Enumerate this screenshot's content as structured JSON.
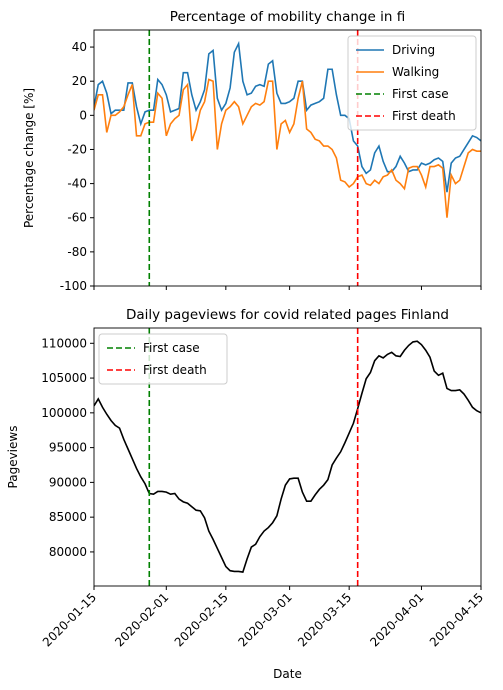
{
  "chart_data": [
    {
      "type": "line",
      "title": "Percentage of mobility change in fi",
      "ylabel": "Percentage change [%]",
      "x": [
        "2020-01-15",
        "2020-01-16",
        "2020-01-17",
        "2020-01-18",
        "2020-01-19",
        "2020-01-20",
        "2020-01-21",
        "2020-01-22",
        "2020-01-23",
        "2020-01-24",
        "2020-01-25",
        "2020-01-26",
        "2020-01-27",
        "2020-01-28",
        "2020-01-29",
        "2020-01-30",
        "2020-01-31",
        "2020-02-01",
        "2020-02-02",
        "2020-02-03",
        "2020-02-04",
        "2020-02-05",
        "2020-02-06",
        "2020-02-07",
        "2020-02-08",
        "2020-02-09",
        "2020-02-10",
        "2020-02-11",
        "2020-02-12",
        "2020-02-13",
        "2020-02-14",
        "2020-02-15",
        "2020-02-16",
        "2020-02-17",
        "2020-02-18",
        "2020-02-19",
        "2020-02-20",
        "2020-02-21",
        "2020-02-22",
        "2020-02-23",
        "2020-02-24",
        "2020-02-25",
        "2020-02-26",
        "2020-02-27",
        "2020-02-28",
        "2020-02-29",
        "2020-03-01",
        "2020-03-02",
        "2020-03-03",
        "2020-03-04",
        "2020-03-05",
        "2020-03-06",
        "2020-03-07",
        "2020-03-08",
        "2020-03-09",
        "2020-03-10",
        "2020-03-11",
        "2020-03-12",
        "2020-03-13",
        "2020-03-14",
        "2020-03-15",
        "2020-03-16",
        "2020-03-17",
        "2020-03-18",
        "2020-03-19",
        "2020-03-20",
        "2020-03-21",
        "2020-03-22",
        "2020-03-23",
        "2020-03-24",
        "2020-03-25",
        "2020-03-26",
        "2020-03-27",
        "2020-03-28",
        "2020-03-29",
        "2020-03-30",
        "2020-03-31",
        "2020-04-01",
        "2020-04-02",
        "2020-04-03",
        "2020-04-04",
        "2020-04-05",
        "2020-04-06",
        "2020-04-07",
        "2020-04-08",
        "2020-04-09",
        "2020-04-10",
        "2020-04-11",
        "2020-04-12",
        "2020-04-13",
        "2020-04-14",
        "2020-04-15"
      ],
      "series": [
        {
          "name": "Driving",
          "color": "#1f77b4",
          "values": [
            5,
            18,
            20,
            13,
            1,
            3,
            3,
            3,
            19,
            19,
            5,
            -5,
            2,
            3,
            3,
            21,
            18,
            12,
            2,
            3,
            4,
            25,
            25,
            12,
            3,
            8,
            15,
            36,
            38,
            10,
            3,
            7,
            16,
            37,
            42,
            20,
            12,
            13,
            17,
            18,
            17,
            30,
            32,
            13,
            7,
            7,
            8,
            10,
            20,
            20,
            3,
            6,
            7,
            8,
            10,
            27,
            27,
            12,
            0,
            0,
            -2,
            -15,
            -18,
            -30,
            -34,
            -32,
            -22,
            -18,
            -27,
            -33,
            -33,
            -30,
            -24,
            -28,
            -33,
            -32,
            -32,
            -28,
            -29,
            -28,
            -26,
            -25,
            -27,
            -45,
            -28,
            -25,
            -24,
            -20,
            -16,
            -12,
            -13,
            -15
          ]
        },
        {
          "name": "Walking",
          "color": "#ff7f0e",
          "values": [
            3,
            12,
            12,
            -10,
            0,
            0,
            2,
            5,
            12,
            18,
            -12,
            -12,
            -5,
            -4,
            -4,
            13,
            10,
            -12,
            -5,
            -2,
            0,
            15,
            18,
            -15,
            -8,
            3,
            8,
            21,
            20,
            -20,
            -5,
            3,
            5,
            8,
            5,
            -5,
            0,
            5,
            7,
            6,
            8,
            20,
            20,
            -20,
            -5,
            -3,
            -10,
            -5,
            10,
            20,
            -8,
            -10,
            -14,
            -15,
            -18,
            -18,
            -20,
            -25,
            -38,
            -39,
            -42,
            -40,
            -36,
            -35,
            -40,
            -41,
            -38,
            -40,
            -36,
            -35,
            -32,
            -38,
            -40,
            -43,
            -31,
            -30,
            -30,
            -35,
            -42,
            -30,
            -30,
            -29,
            -31,
            -60,
            -35,
            -40,
            -38,
            -30,
            -22,
            -20,
            -21,
            -21
          ]
        }
      ],
      "vlines": [
        {
          "name": "First case",
          "color": "#008000",
          "x": "2020-01-28"
        },
        {
          "name": "First death",
          "color": "#ff0000",
          "x": "2020-03-17"
        }
      ],
      "xlim": [
        "2020-01-15",
        "2020-04-15"
      ],
      "xticks": [
        "2020-01-15",
        "2020-02-01",
        "2020-02-15",
        "2020-03-01",
        "2020-03-15",
        "2020-04-01",
        "2020-04-15"
      ],
      "ylim": [
        -100,
        50
      ],
      "yticks": [
        -100,
        -80,
        -60,
        -40,
        -20,
        0,
        20,
        40
      ],
      "legend": "upper right"
    },
    {
      "type": "line",
      "title": "Daily pageviews for covid related pages Finland",
      "ylabel": "Pageviews",
      "xlabel": "Date",
      "x": [
        "2020-01-15",
        "2020-01-16",
        "2020-01-17",
        "2020-01-18",
        "2020-01-19",
        "2020-01-20",
        "2020-01-21",
        "2020-01-22",
        "2020-01-23",
        "2020-01-24",
        "2020-01-25",
        "2020-01-26",
        "2020-01-27",
        "2020-01-28",
        "2020-01-29",
        "2020-01-30",
        "2020-01-31",
        "2020-02-01",
        "2020-02-02",
        "2020-02-03",
        "2020-02-04",
        "2020-02-05",
        "2020-02-06",
        "2020-02-07",
        "2020-02-08",
        "2020-02-09",
        "2020-02-10",
        "2020-02-11",
        "2020-02-12",
        "2020-02-13",
        "2020-02-14",
        "2020-02-15",
        "2020-02-16",
        "2020-02-17",
        "2020-02-18",
        "2020-02-19",
        "2020-02-20",
        "2020-02-21",
        "2020-02-22",
        "2020-02-23",
        "2020-02-24",
        "2020-02-25",
        "2020-02-26",
        "2020-02-27",
        "2020-02-28",
        "2020-02-29",
        "2020-03-01",
        "2020-03-02",
        "2020-03-03",
        "2020-03-04",
        "2020-03-05",
        "2020-03-06",
        "2020-03-07",
        "2020-03-08",
        "2020-03-09",
        "2020-03-10",
        "2020-03-11",
        "2020-03-12",
        "2020-03-13",
        "2020-03-14",
        "2020-03-15",
        "2020-03-16",
        "2020-03-17",
        "2020-03-18",
        "2020-03-19",
        "2020-03-20",
        "2020-03-21",
        "2020-03-22",
        "2020-03-23",
        "2020-03-24",
        "2020-03-25",
        "2020-03-26",
        "2020-03-27",
        "2020-03-28",
        "2020-03-29",
        "2020-03-30",
        "2020-03-31",
        "2020-04-01",
        "2020-04-02",
        "2020-04-03",
        "2020-04-04",
        "2020-04-05",
        "2020-04-06",
        "2020-04-07",
        "2020-04-08",
        "2020-04-09",
        "2020-04-10",
        "2020-04-11",
        "2020-04-12",
        "2020-04-13",
        "2020-04-14",
        "2020-04-15"
      ],
      "series": [
        {
          "color": "#000000",
          "values": [
            101000,
            102000,
            100800,
            99800,
            98900,
            98200,
            97800,
            96200,
            94800,
            93400,
            92000,
            90800,
            89800,
            88400,
            88300,
            88700,
            88700,
            88600,
            88300,
            88400,
            87600,
            87200,
            87000,
            86500,
            86000,
            85900,
            84900,
            83000,
            81800,
            80500,
            79200,
            77900,
            77300,
            77200,
            77200,
            77100,
            79000,
            80700,
            81100,
            82200,
            83000,
            83500,
            84200,
            85200,
            87600,
            89600,
            90500,
            90600,
            90600,
            88600,
            87300,
            87300,
            88200,
            89000,
            89600,
            90400,
            92500,
            93500,
            94400,
            95700,
            97100,
            98500,
            100600,
            102800,
            104900,
            105800,
            107500,
            108200,
            107900,
            108400,
            108700,
            108200,
            108100,
            109000,
            109700,
            110200,
            110300,
            109800,
            109000,
            108000,
            106000,
            105400,
            105700,
            103500,
            103200,
            103200,
            103300,
            102700,
            101800,
            100800,
            100300,
            100000
          ]
        }
      ],
      "vlines": [
        {
          "name": "First case",
          "color": "#008000",
          "x": "2020-01-28"
        },
        {
          "name": "First death",
          "color": "#ff0000",
          "x": "2020-03-17"
        }
      ],
      "xlim": [
        "2020-01-15",
        "2020-04-15"
      ],
      "xticks": [
        "2020-01-15",
        "2020-02-01",
        "2020-02-15",
        "2020-03-01",
        "2020-03-15",
        "2020-04-01",
        "2020-04-15"
      ],
      "ylim": [
        75100,
        112200
      ],
      "yticks": [
        80000,
        85000,
        90000,
        95000,
        100000,
        105000,
        110000
      ],
      "legend": "upper left"
    }
  ]
}
